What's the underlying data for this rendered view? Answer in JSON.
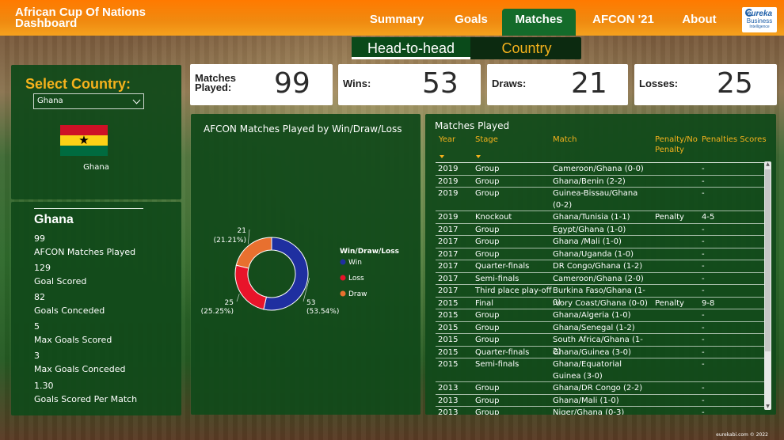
{
  "app": {
    "title": "African Cup Of Nations Dashboard",
    "logo_line1": "eureka",
    "logo_line2": "Business",
    "logo_line3": "Intelligence"
  },
  "nav": {
    "items": [
      {
        "label": "Summary"
      },
      {
        "label": "Goals"
      },
      {
        "label": "Matches"
      },
      {
        "label": "AFCON '21"
      },
      {
        "label": "About"
      }
    ],
    "active": "Matches"
  },
  "subtabs": {
    "head_to_head": "Head-to-head",
    "country": "Country"
  },
  "selector": {
    "label": "Select Country:",
    "value": "Ghana",
    "flag_caption": "Ghana"
  },
  "stats": {
    "title": "Ghana",
    "items": [
      {
        "value": "99",
        "label": "AFCON Matches Played"
      },
      {
        "value": "129",
        "label": "Goal Scored"
      },
      {
        "value": "82",
        "label": "Goals Conceded"
      },
      {
        "value": "5",
        "label": "Max Goals Scored"
      },
      {
        "value": "3",
        "label": "Max Goals Conceded"
      },
      {
        "value": "1.30",
        "label": "Goals Scored Per Match"
      }
    ]
  },
  "kpis": {
    "matches_label_1": "Matches",
    "matches_label_2": "Played:",
    "matches_value": "99",
    "wins_label": "Wins:",
    "wins_value": "53",
    "draws_label": "Draws:",
    "draws_value": "21",
    "losses_label": "Losses:",
    "losses_value": "25"
  },
  "chart_data": {
    "type": "pie",
    "title": "AFCON Matches Played by Win/Draw/Loss",
    "legend_title": "Win/Draw/Loss",
    "legend_position": "right",
    "slices": [
      {
        "name": "Win",
        "value": 53,
        "percent": "(53.54%)",
        "color": "#1f2fa0"
      },
      {
        "name": "Loss",
        "value": 25,
        "percent": "(25.25%)",
        "color": "#e8142a"
      },
      {
        "name": "Draw",
        "value": 21,
        "percent": "(21.21%)",
        "color": "#e8702f"
      }
    ]
  },
  "table": {
    "title": "Matches Played",
    "headers": {
      "year": "Year",
      "stage": "Stage",
      "match": "Match",
      "penalty_1": "Penalty/No",
      "penalty_2": "Penalty",
      "scores": "Penalties Scores"
    },
    "rows": [
      {
        "year": "2019",
        "stage": "Group",
        "match": "Cameroon/Ghana (0-0)",
        "penalty": "",
        "scores": "-"
      },
      {
        "year": "2019",
        "stage": "Group",
        "match": "Ghana/Benin (2-2)",
        "penalty": "",
        "scores": "-"
      },
      {
        "year": "2019",
        "stage": "Group",
        "match": "Guinea-Bissau/Ghana (0-2)",
        "penalty": "",
        "scores": "-"
      },
      {
        "year": "2019",
        "stage": "Knockout",
        "match": "Ghana/Tunisia (1-1)",
        "penalty": "Penalty",
        "scores": "4-5"
      },
      {
        "year": "2017",
        "stage": "Group",
        "match": "Egypt/Ghana (1-0)",
        "penalty": "",
        "scores": "-"
      },
      {
        "year": "2017",
        "stage": "Group",
        "match": "Ghana /Mali (1-0)",
        "penalty": "",
        "scores": "-"
      },
      {
        "year": "2017",
        "stage": "Group",
        "match": "Ghana/Uganda (1-0)",
        "penalty": "",
        "scores": "-"
      },
      {
        "year": "2017",
        "stage": "Quarter-finals",
        "match": "DR Congo/Ghana (1-2)",
        "penalty": "",
        "scores": "-"
      },
      {
        "year": "2017",
        "stage": "Semi-finals",
        "match": "Cameroon/Ghana (2-0)",
        "penalty": "",
        "scores": "-"
      },
      {
        "year": "2017",
        "stage": "Third place play-off",
        "match": "Burkina Faso/Ghana (1-0)",
        "penalty": "",
        "scores": "-"
      },
      {
        "year": "2015",
        "stage": "Final",
        "match": "Ivory Coast/Ghana (0-0)",
        "penalty": "Penalty",
        "scores": "9-8"
      },
      {
        "year": "2015",
        "stage": "Group",
        "match": "Ghana/Algeria (1-0)",
        "penalty": "",
        "scores": "-"
      },
      {
        "year": "2015",
        "stage": "Group",
        "match": "Ghana/Senegal (1-2)",
        "penalty": "",
        "scores": "-"
      },
      {
        "year": "2015",
        "stage": "Group",
        "match": "South Africa/Ghana (1-2)",
        "penalty": "",
        "scores": "-"
      },
      {
        "year": "2015",
        "stage": "Quarter-finals",
        "match": "Ghana/Guinea (3-0)",
        "penalty": "",
        "scores": "-"
      },
      {
        "year": "2015",
        "stage": "Semi-finals",
        "match": "Ghana/Equatorial Guinea (3-0)",
        "penalty": "",
        "scores": "-"
      },
      {
        "year": "2013",
        "stage": "Group",
        "match": "Ghana/DR Congo (2-2)",
        "penalty": "",
        "scores": "-"
      },
      {
        "year": "2013",
        "stage": "Group",
        "match": "Ghana/Mali (1-0)",
        "penalty": "",
        "scores": "-"
      },
      {
        "year": "2013",
        "stage": "Group",
        "match": "Niger/Ghana (0-3)",
        "penalty": "",
        "scores": "-"
      }
    ]
  },
  "footer": {
    "credit": "eurekabi.com © 2022"
  },
  "icons": {
    "dropdown": "chevron-down-icon",
    "sort": "sort-arrow-icon",
    "star": "star-icon"
  }
}
